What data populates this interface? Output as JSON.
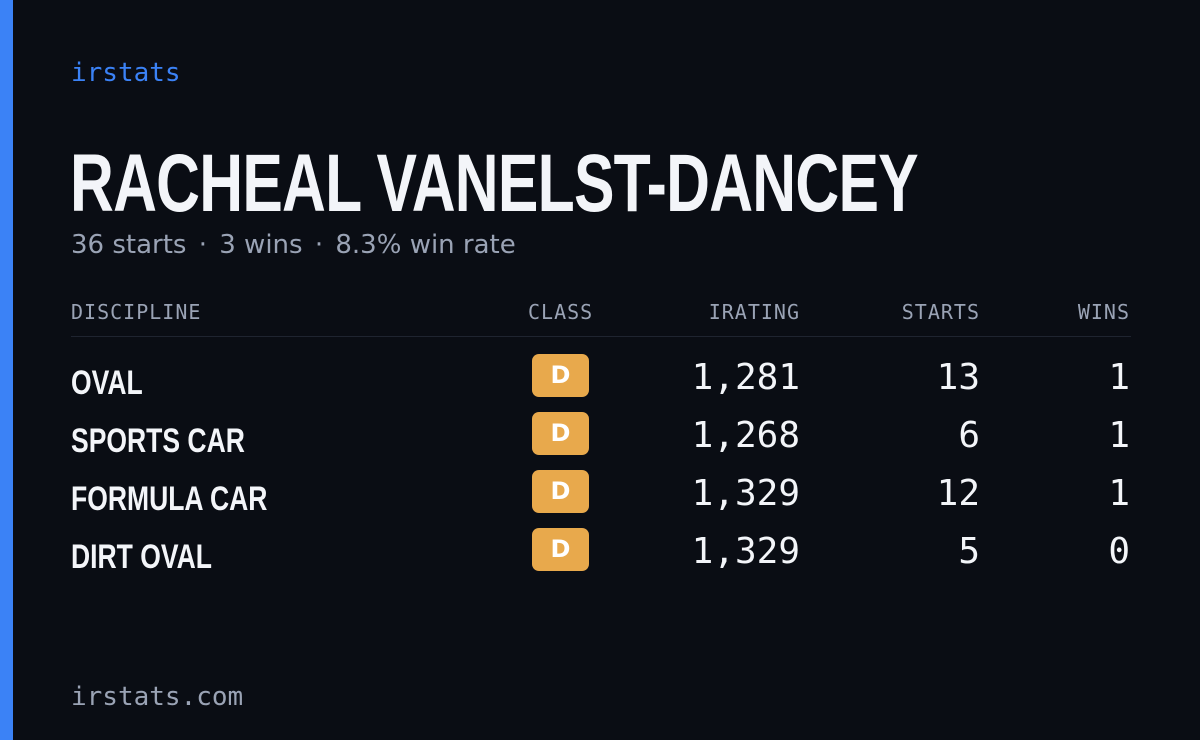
{
  "brand": "irstats",
  "driver": {
    "name": "RACHEAL VANELST-DANCEY"
  },
  "summary": {
    "starts": "36 starts",
    "wins": "3 wins",
    "win_rate": "8.3% win rate",
    "separator": "·"
  },
  "table": {
    "headers": {
      "discipline": "DISCIPLINE",
      "class": "CLASS",
      "irating": "IRATING",
      "starts": "STARTS",
      "wins": "WINS"
    },
    "rows": [
      {
        "discipline": "OVAL",
        "class": "D",
        "irating": "1,281",
        "starts": "13",
        "wins": "1"
      },
      {
        "discipline": "SPORTS CAR",
        "class": "D",
        "irating": "1,268",
        "starts": "6",
        "wins": "1"
      },
      {
        "discipline": "FORMULA CAR",
        "class": "D",
        "irating": "1,329",
        "starts": "12",
        "wins": "1"
      },
      {
        "discipline": "DIRT OVAL",
        "class": "D",
        "irating": "1,329",
        "starts": "5",
        "wins": "0"
      }
    ]
  },
  "footer": {
    "url": "irstats.com"
  },
  "colors": {
    "background": "#0a0d14",
    "accent": "#3b82f6",
    "class_d_badge": "#e8a94c",
    "muted_text": "#9aa3b5",
    "primary_text": "#f3f5f9"
  }
}
